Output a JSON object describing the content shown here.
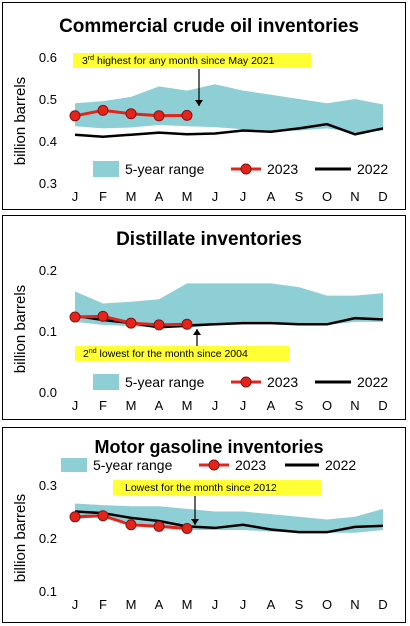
{
  "chart_data": [
    {
      "type": "line",
      "title": "Commercial crude oil inventories",
      "ylabel": "billion barrels",
      "categories": [
        "J",
        "F",
        "M",
        "A",
        "M",
        "J",
        "J",
        "A",
        "S",
        "O",
        "N",
        "D"
      ],
      "yticks": [
        "0.3",
        "0.4",
        "0.5",
        "0.6"
      ],
      "ylim": [
        0.3,
        0.6
      ],
      "range_low": [
        0.435,
        0.43,
        0.432,
        0.438,
        0.435,
        0.433,
        0.428,
        0.425,
        0.425,
        0.43,
        0.42,
        0.425
      ],
      "range_high": [
        0.49,
        0.495,
        0.505,
        0.53,
        0.52,
        0.535,
        0.52,
        0.51,
        0.5,
        0.49,
        0.5,
        0.487
      ],
      "series": [
        {
          "name": "2023",
          "values": [
            0.46,
            0.473,
            0.465,
            0.46,
            0.461,
            null,
            null,
            null,
            null,
            null,
            null,
            null
          ]
        },
        {
          "name": "2022",
          "values": [
            0.415,
            0.41,
            0.415,
            0.42,
            0.416,
            0.418,
            0.425,
            0.422,
            0.43,
            0.44,
            0.416,
            0.43
          ]
        }
      ],
      "legend": {
        "range": "5-year range",
        "s2023": "2023",
        "s2022": "2022"
      },
      "legend_position": "bottom",
      "annotation": {
        "pre": "3",
        "sup": "rd",
        "post": " highest for any month since May 2021"
      },
      "colors": {
        "range": "#8ecfd6",
        "s2023": "#e3241b",
        "s2022": "#000000",
        "ann_bg": "#ffff33"
      }
    },
    {
      "type": "line",
      "title": "Distillate inventories",
      "ylabel": "billion barrels",
      "categories": [
        "J",
        "F",
        "M",
        "A",
        "M",
        "J",
        "J",
        "A",
        "S",
        "O",
        "N",
        "D"
      ],
      "yticks": [
        "0.0",
        "0.1",
        "0.2"
      ],
      "ylim": [
        0.0,
        0.2
      ],
      "range_low": [
        0.115,
        0.11,
        0.108,
        0.105,
        0.105,
        0.11,
        0.112,
        0.114,
        0.112,
        0.11,
        0.115,
        0.115
      ],
      "range_high": [
        0.165,
        0.145,
        0.148,
        0.152,
        0.178,
        0.178,
        0.178,
        0.178,
        0.172,
        0.158,
        0.158,
        0.162
      ],
      "series": [
        {
          "name": "2023",
          "values": [
            0.123,
            0.124,
            0.113,
            0.11,
            0.111,
            null,
            null,
            null,
            null,
            null,
            null,
            null
          ]
        },
        {
          "name": "2022",
          "values": [
            0.125,
            0.118,
            0.113,
            0.106,
            0.109,
            0.111,
            0.113,
            0.113,
            0.111,
            0.111,
            0.121,
            0.119
          ]
        }
      ],
      "legend": {
        "range": "5-year range",
        "s2023": "2023",
        "s2022": "2022"
      },
      "legend_position": "bottom",
      "annotation": {
        "pre": "2",
        "sup": "nd",
        "post": " lowest for the month since 2004"
      },
      "colors": {
        "range": "#8ecfd6",
        "s2023": "#e3241b",
        "s2022": "#000000",
        "ann_bg": "#ffff33"
      }
    },
    {
      "type": "line",
      "title": "Motor gasoline inventories",
      "ylabel": "billion barrels",
      "categories": [
        "J",
        "F",
        "M",
        "A",
        "M",
        "J",
        "J",
        "A",
        "S",
        "O",
        "N",
        "D"
      ],
      "yticks": [
        "0.1",
        "0.2",
        "0.3"
      ],
      "ylim": [
        0.1,
        0.3
      ],
      "range_low": [
        0.235,
        0.24,
        0.23,
        0.22,
        0.215,
        0.215,
        0.215,
        0.212,
        0.21,
        0.21,
        0.21,
        0.215
      ],
      "range_high": [
        0.265,
        0.262,
        0.26,
        0.26,
        0.255,
        0.25,
        0.25,
        0.245,
        0.24,
        0.235,
        0.24,
        0.255
      ],
      "series": [
        {
          "name": "2023",
          "values": [
            0.24,
            0.242,
            0.225,
            0.222,
            0.218,
            null,
            null,
            null,
            null,
            null,
            null,
            null
          ]
        },
        {
          "name": "2022",
          "values": [
            0.25,
            0.247,
            0.238,
            0.232,
            0.222,
            0.219,
            0.225,
            0.216,
            0.211,
            0.211,
            0.221,
            0.223
          ]
        }
      ],
      "legend": {
        "range": "5-year range",
        "s2023": "2023",
        "s2022": "2022"
      },
      "legend_position": "top",
      "annotation": {
        "pre": "Lowest for the month since 2012",
        "sup": "",
        "post": ""
      },
      "colors": {
        "range": "#8ecfd6",
        "s2023": "#e3241b",
        "s2022": "#000000",
        "ann_bg": "#ffff33"
      }
    }
  ]
}
